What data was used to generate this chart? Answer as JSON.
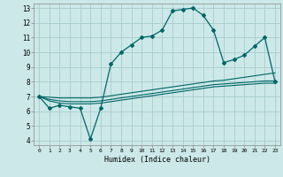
{
  "title": "",
  "xlabel": "Humidex (Indice chaleur)",
  "background_color": "#cce8e8",
  "grid_color": "#aacccc",
  "line_color": "#006666",
  "x_main": [
    0,
    1,
    2,
    3,
    4,
    5,
    6,
    7,
    8,
    9,
    10,
    11,
    12,
    13,
    14,
    15,
    16,
    17,
    18,
    19,
    20,
    21,
    22,
    23
  ],
  "y_main": [
    7.0,
    6.2,
    6.4,
    6.3,
    6.2,
    4.1,
    6.2,
    9.2,
    10.0,
    10.5,
    11.0,
    11.1,
    11.5,
    12.8,
    12.9,
    13.0,
    12.5,
    11.5,
    9.3,
    9.5,
    9.8,
    10.4,
    11.0,
    8.0
  ],
  "y_trend1": [
    7.0,
    6.95,
    6.9,
    6.9,
    6.9,
    6.9,
    6.95,
    7.05,
    7.15,
    7.25,
    7.35,
    7.45,
    7.55,
    7.65,
    7.75,
    7.85,
    7.95,
    8.05,
    8.1,
    8.2,
    8.3,
    8.4,
    8.5,
    8.6
  ],
  "y_trend2": [
    7.0,
    6.8,
    6.7,
    6.65,
    6.65,
    6.65,
    6.7,
    6.8,
    6.9,
    7.0,
    7.1,
    7.2,
    7.3,
    7.4,
    7.5,
    7.6,
    7.7,
    7.8,
    7.85,
    7.9,
    7.95,
    8.0,
    8.05,
    8.05
  ],
  "y_trend3": [
    7.0,
    6.7,
    6.55,
    6.5,
    6.5,
    6.5,
    6.55,
    6.65,
    6.75,
    6.85,
    6.95,
    7.05,
    7.15,
    7.25,
    7.35,
    7.45,
    7.55,
    7.65,
    7.7,
    7.75,
    7.8,
    7.85,
    7.9,
    7.9
  ],
  "ylim": [
    4,
    13
  ],
  "xlim": [
    -0.5,
    23.5
  ],
  "yticks": [
    4,
    5,
    6,
    7,
    8,
    9,
    10,
    11,
    12,
    13
  ],
  "xticks": [
    0,
    1,
    2,
    3,
    4,
    5,
    6,
    7,
    8,
    9,
    10,
    11,
    12,
    13,
    14,
    15,
    16,
    17,
    18,
    19,
    20,
    21,
    22,
    23
  ]
}
